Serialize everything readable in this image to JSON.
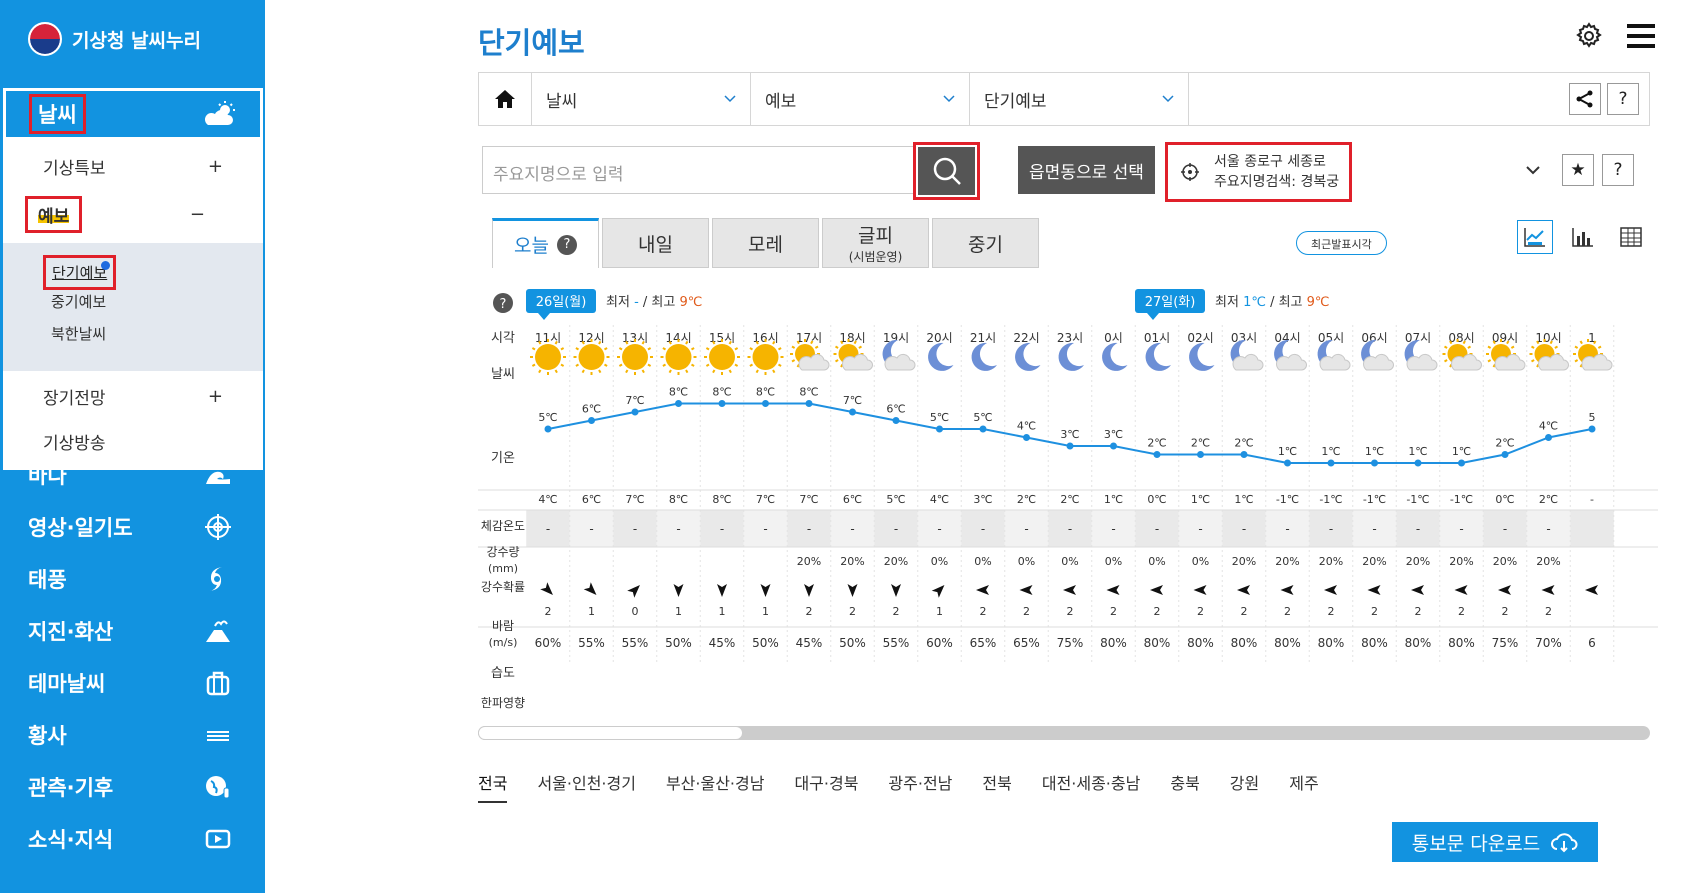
{
  "brand": {
    "name": "기상청 날씨누리"
  },
  "sidebar": {
    "active_top": "날씨",
    "subs": [
      {
        "label": "기상특보",
        "sign": "+"
      },
      {
        "label": "예보",
        "sign": "−"
      },
      {
        "label": "장기전망",
        "sign": "+"
      },
      {
        "label": "기상방송",
        "sign": ""
      }
    ],
    "subsubs": [
      "단기예보",
      "중기예보",
      "북한날씨"
    ],
    "menu": [
      "바다",
      "영상·일기도",
      "태풍",
      "지진·화산",
      "테마날씨",
      "황사",
      "관측·기후",
      "소식·지식"
    ]
  },
  "page": {
    "title": "단기예보"
  },
  "breadcrumb": {
    "items": [
      "날씨",
      "예보",
      "단기예보"
    ],
    "help": "?"
  },
  "search": {
    "placeholder": "주요지명으로 입력",
    "emd_label": "읍면동으로 선택",
    "loc_line1": "서울 종로구 세종로",
    "loc_line2": "주요지명검색: 경복궁",
    "star": "★",
    "help": "?"
  },
  "tabs": [
    {
      "label": "오늘",
      "sub": ""
    },
    {
      "label": "내일",
      "sub": ""
    },
    {
      "label": "모레",
      "sub": ""
    },
    {
      "label": "글피",
      "sub": "(시범운영)"
    },
    {
      "label": "중기",
      "sub": ""
    }
  ],
  "recent_label": "최근발표시각",
  "forecast": {
    "help": "?",
    "day1": {
      "badge": "26일(월)",
      "min_label": "최저",
      "min": "-",
      "max_label": "최고",
      "max": "9℃"
    },
    "day2": {
      "badge": "27일(화)",
      "min_label": "최저",
      "min": "1℃",
      "max_label": "최고",
      "max": "9℃"
    },
    "sep": "/",
    "row_labels": {
      "time": "시각",
      "weather": "날씨",
      "temp": "기온",
      "feels": "체감온도",
      "precip": "강수량",
      "precip_unit": "(mm)",
      "prob": "강수확률",
      "wind": "바람",
      "wind_unit": "(m/s)",
      "humid": "습도",
      "cold": "한파영향"
    },
    "times": [
      "11시",
      "12시",
      "13시",
      "14시",
      "15시",
      "16시",
      "17시",
      "18시",
      "19시",
      "20시",
      "21시",
      "22시",
      "23시",
      "0시",
      "01시",
      "02시",
      "03시",
      "04시",
      "05시",
      "06시",
      "07시",
      "08시",
      "09시",
      "10시",
      "1"
    ],
    "weather": [
      "sun",
      "sun",
      "sun",
      "sun",
      "sun",
      "sun",
      "sun-cloud",
      "sun-cloud",
      "moon-cloud",
      "moon",
      "moon",
      "moon",
      "moon",
      "moon",
      "moon",
      "moon",
      "moon-cloud",
      "moon-cloud",
      "moon-cloud",
      "moon-cloud",
      "moon-cloud",
      "sun-cloud",
      "sun-cloud",
      "sun-cloud",
      "sun-cloud"
    ],
    "temps": [
      5,
      6,
      7,
      8,
      8,
      8,
      8,
      7,
      6,
      5,
      5,
      4,
      3,
      3,
      2,
      2,
      2,
      1,
      1,
      1,
      1,
      1,
      2,
      4,
      5
    ],
    "temp_labels": [
      "5℃",
      "6℃",
      "7℃",
      "8℃",
      "8℃",
      "8℃",
      "8℃",
      "7℃",
      "6℃",
      "5℃",
      "5℃",
      "4℃",
      "3℃",
      "3℃",
      "2℃",
      "2℃",
      "2℃",
      "1℃",
      "1℃",
      "1℃",
      "1℃",
      "1℃",
      "2℃",
      "4℃",
      "5"
    ],
    "feels": [
      "4℃",
      "6℃",
      "7℃",
      "8℃",
      "8℃",
      "7℃",
      "7℃",
      "6℃",
      "5℃",
      "4℃",
      "3℃",
      "2℃",
      "2℃",
      "1℃",
      "0℃",
      "1℃",
      "1℃",
      "-1℃",
      "-1℃",
      "-1℃",
      "-1℃",
      "-1℃",
      "0℃",
      "2℃",
      "-"
    ],
    "precip": [
      "-",
      "-",
      "-",
      "-",
      "-",
      "-",
      "-",
      "-",
      "-",
      "-",
      "-",
      "-",
      "-",
      "-",
      "-",
      "-",
      "-",
      "-",
      "-",
      "-",
      "-",
      "-",
      "-",
      "-",
      ""
    ],
    "prob": [
      "",
      "",
      "",
      "",
      "",
      "",
      "20%",
      "20%",
      "20%",
      "0%",
      "0%",
      "0%",
      "0%",
      "0%",
      "0%",
      "0%",
      "20%",
      "20%",
      "20%",
      "20%",
      "20%",
      "20%",
      "20%",
      "20%",
      ""
    ],
    "wind_dir": [
      135,
      135,
      45,
      180,
      180,
      180,
      180,
      180,
      180,
      45,
      270,
      270,
      270,
      270,
      270,
      270,
      270,
      270,
      270,
      270,
      270,
      270,
      270,
      270,
      270
    ],
    "wind_spd": [
      "2",
      "1",
      "0",
      "1",
      "1",
      "1",
      "2",
      "2",
      "2",
      "1",
      "2",
      "2",
      "2",
      "2",
      "2",
      "2",
      "2",
      "2",
      "2",
      "2",
      "2",
      "2",
      "2",
      "2",
      ""
    ],
    "humid": [
      "60%",
      "55%",
      "55%",
      "50%",
      "45%",
      "50%",
      "45%",
      "50%",
      "55%",
      "60%",
      "65%",
      "65%",
      "75%",
      "80%",
      "80%",
      "80%",
      "80%",
      "80%",
      "80%",
      "80%",
      "80%",
      "80%",
      "75%",
      "70%",
      "6"
    ]
  },
  "regions": [
    "전국",
    "서울·인천·경기",
    "부산·울산·경남",
    "대구·경북",
    "광주·전남",
    "전북",
    "대전·세종·충남",
    "충북",
    "강원",
    "제주"
  ],
  "download": {
    "label": "통보문 다운로드"
  },
  "colors": {
    "primary": "#1293e0",
    "highlight": "#e0202a",
    "sun": "#f6b400",
    "line": "#1e90e0"
  }
}
